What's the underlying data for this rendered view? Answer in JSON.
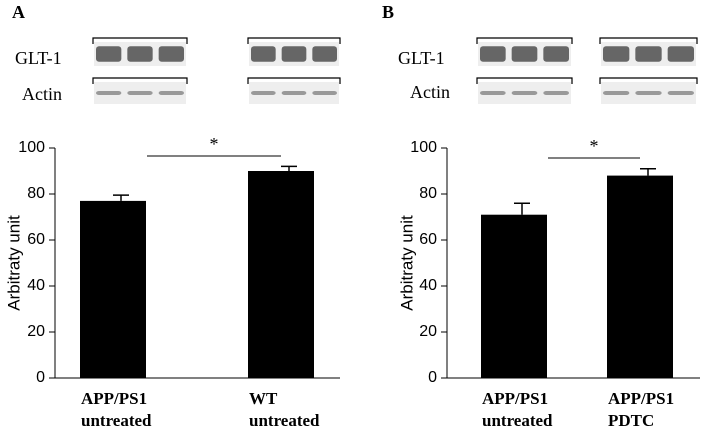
{
  "chart_data": [
    {
      "type": "bar",
      "panel_label": "A",
      "blot_labels": [
        "GLT-1",
        "Actin"
      ],
      "y_label": "Arbitraty unit",
      "categories": [
        "APP/PS1 untreated",
        "WT untreated"
      ],
      "values": [
        77,
        90
      ],
      "errors": [
        2.5,
        2
      ],
      "color": "#000000",
      "ylim": [
        0,
        100
      ],
      "yticks": [
        0,
        20,
        40,
        60,
        80,
        100
      ],
      "significance": "*"
    },
    {
      "type": "bar",
      "panel_label": "B",
      "blot_labels": [
        "GLT-1",
        "Actin"
      ],
      "y_label": "Arbitraty unit",
      "categories": [
        "APP/PS1 untreated",
        "APP/PS1 PDTC"
      ],
      "values": [
        71,
        88
      ],
      "errors": [
        5,
        3
      ],
      "color": "#000000",
      "ylim": [
        0,
        100
      ],
      "yticks": [
        0,
        20,
        40,
        60,
        80,
        100
      ],
      "significance": "*"
    }
  ]
}
